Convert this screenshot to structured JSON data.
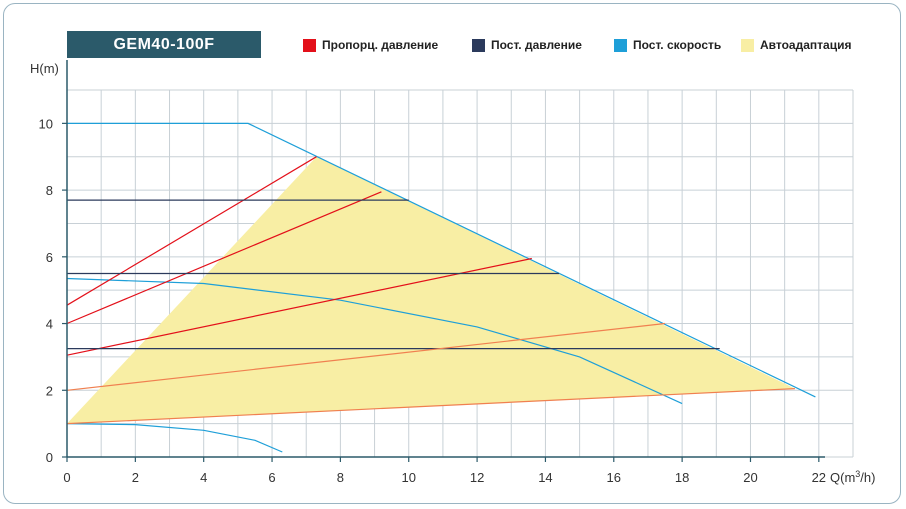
{
  "title": "GEM40-100F",
  "legend": [
    {
      "label": "Пропорц. давление",
      "color": "#e3101a"
    },
    {
      "label": "Пост. давление",
      "color": "#2b3a5c"
    },
    {
      "label": "Пост. скорость",
      "color": "#1e9fd8"
    },
    {
      "label": "Автоадаптация",
      "color": "#f8eea4"
    }
  ],
  "colors": {
    "grid": "#c8d0d6",
    "axis": "#2b5a6a",
    "orange": "#f08050"
  },
  "chart_data": {
    "type": "line",
    "ylabel": "H(m)",
    "xlabel": "Q(m³/h)",
    "xlim": [
      0,
      23
    ],
    "ylim": [
      0,
      11
    ],
    "xticks": [
      0,
      2,
      4,
      6,
      8,
      10,
      12,
      14,
      16,
      18,
      20,
      22
    ],
    "yticks": [
      0,
      2,
      4,
      6,
      8,
      10
    ],
    "autoadapt_region": [
      [
        0,
        1.0
      ],
      [
        7.3,
        9.0
      ],
      [
        21.3,
        2.05
      ],
      [
        0,
        1.0
      ]
    ],
    "series": [
      {
        "group": "Пост. скорость",
        "points": [
          [
            0,
            10
          ],
          [
            5.3,
            10
          ],
          [
            21.9,
            1.8
          ]
        ]
      },
      {
        "group": "Пост. скорость",
        "points": [
          [
            0,
            5.35
          ],
          [
            4,
            5.2
          ],
          [
            8,
            4.7
          ],
          [
            12,
            3.9
          ],
          [
            15,
            3.0
          ],
          [
            18,
            1.6
          ]
        ]
      },
      {
        "group": "Пост. скорость",
        "points": [
          [
            0,
            1.0
          ],
          [
            2,
            0.97
          ],
          [
            4,
            0.8
          ],
          [
            5.5,
            0.5
          ],
          [
            6.3,
            0.15
          ]
        ]
      },
      {
        "group": "Пропорц. давление",
        "points": [
          [
            0,
            4.55
          ],
          [
            7.3,
            9.0
          ]
        ]
      },
      {
        "group": "Пропорц. давление",
        "points": [
          [
            0,
            4.0
          ],
          [
            9.2,
            7.95
          ]
        ]
      },
      {
        "group": "Пропорц. давление",
        "points": [
          [
            0,
            3.05
          ],
          [
            13.6,
            5.95
          ]
        ]
      },
      {
        "group": "Пост. давление",
        "points": [
          [
            0,
            7.7
          ],
          [
            10,
            7.7
          ]
        ]
      },
      {
        "group": "Пост. давление",
        "points": [
          [
            0,
            5.5
          ],
          [
            14.4,
            5.5
          ]
        ]
      },
      {
        "group": "Пост. давление",
        "points": [
          [
            0,
            3.25
          ],
          [
            19.1,
            3.25
          ]
        ]
      },
      {
        "group": "Автоадаптация",
        "points": [
          [
            0,
            2.0
          ],
          [
            17.5,
            4.0
          ]
        ]
      },
      {
        "group": "Автоадаптация",
        "points": [
          [
            0,
            1.0
          ],
          [
            21.3,
            2.05
          ]
        ]
      }
    ]
  }
}
